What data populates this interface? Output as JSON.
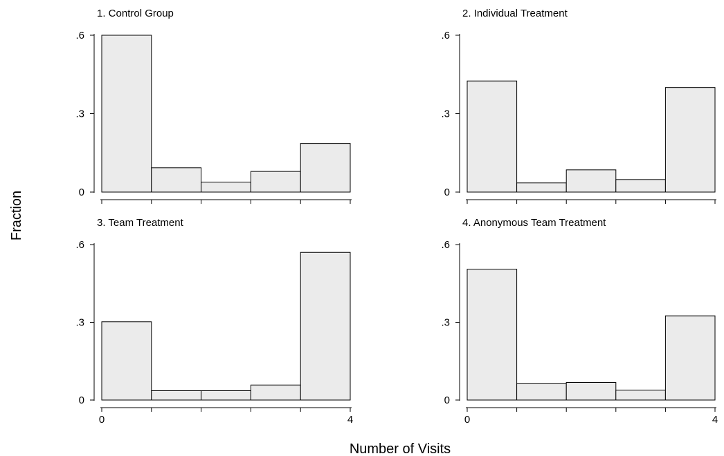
{
  "chart_data": {
    "type": "bar",
    "ylabel": "Fraction",
    "xlabel": "Number of Visits",
    "colors": {
      "bar_fill": "#ebebeb",
      "bar_stroke": "#000000"
    },
    "x_range": [
      0,
      4
    ],
    "y_range": [
      0,
      0.6
    ],
    "x_ticks": [
      0,
      0.8,
      1.6,
      2.4,
      3.2,
      4
    ],
    "x_tick_labels": [
      "0",
      "",
      "",
      "",
      "",
      "4"
    ],
    "y_ticks": [
      0,
      0.3,
      0.6
    ],
    "y_tick_labels": [
      "0",
      ".3",
      ".6"
    ],
    "bins": [
      0,
      0.8,
      1.6,
      2.4,
      3.2,
      4
    ],
    "panels": [
      {
        "title": "1. Control Group",
        "values": [
          0.6,
          0.093,
          0.038,
          0.079,
          0.186
        ]
      },
      {
        "title": "2. Individual Treatment",
        "values": [
          0.425,
          0.035,
          0.085,
          0.048,
          0.4
        ]
      },
      {
        "title": "3. Team Treatment",
        "values": [
          0.302,
          0.036,
          0.036,
          0.058,
          0.57
        ]
      },
      {
        "title": "4. Anonymous Team Treatment",
        "values": [
          0.505,
          0.063,
          0.068,
          0.038,
          0.325
        ]
      }
    ]
  }
}
